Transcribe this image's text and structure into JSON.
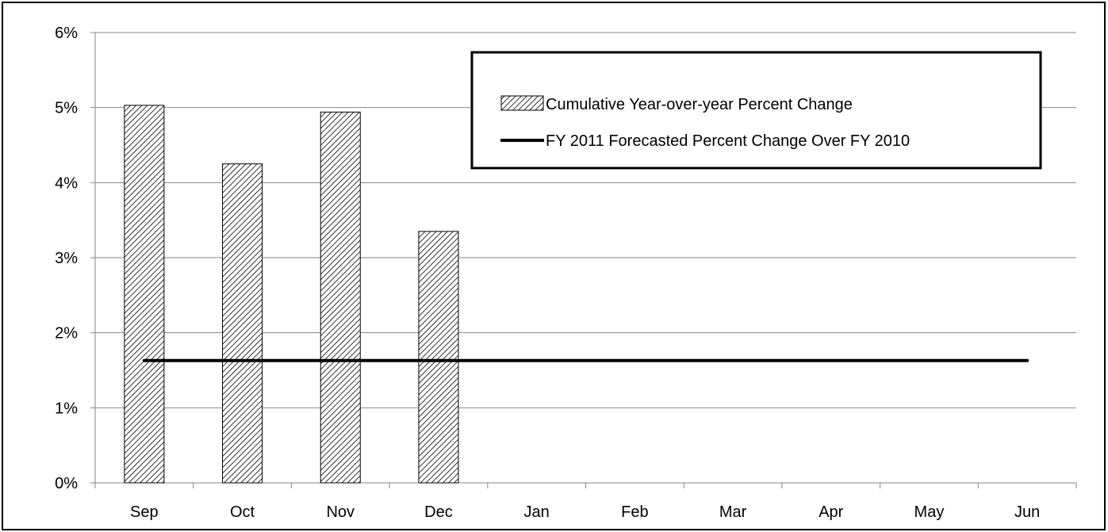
{
  "chart_data": {
    "type": "bar",
    "title": "",
    "xlabel": "",
    "ylabel": "",
    "categories": [
      "Sep",
      "Oct",
      "Nov",
      "Dec",
      "Jan",
      "Feb",
      "Mar",
      "Apr",
      "May",
      "Jun"
    ],
    "series": [
      {
        "name": "Cumulative Year-over-year Percent Change",
        "kind": "bar",
        "pattern": "diagonal-hatch",
        "values": [
          5.03,
          4.25,
          4.94,
          3.35,
          null,
          null,
          null,
          null,
          null,
          null
        ]
      },
      {
        "name": "FY 2011 Forecasted Percent Change Over FY 2010",
        "kind": "line",
        "color": "#000000",
        "values": [
          1.63,
          1.63,
          1.63,
          1.63,
          1.63,
          1.63,
          1.63,
          1.63,
          1.63,
          1.63
        ]
      }
    ],
    "ylim": [
      0,
      6
    ],
    "yticks": [
      0,
      1,
      2,
      3,
      4,
      5,
      6
    ],
    "ytick_labels": [
      "0%",
      "1%",
      "2%",
      "3%",
      "4%",
      "5%",
      "6%"
    ],
    "grid": "horizontal",
    "legend_position": "top-right"
  },
  "colors": {
    "grid": "#868686",
    "axis": "#868686",
    "bar_fill": "#ffffff",
    "hatch": "#000000",
    "line": "#000000"
  }
}
